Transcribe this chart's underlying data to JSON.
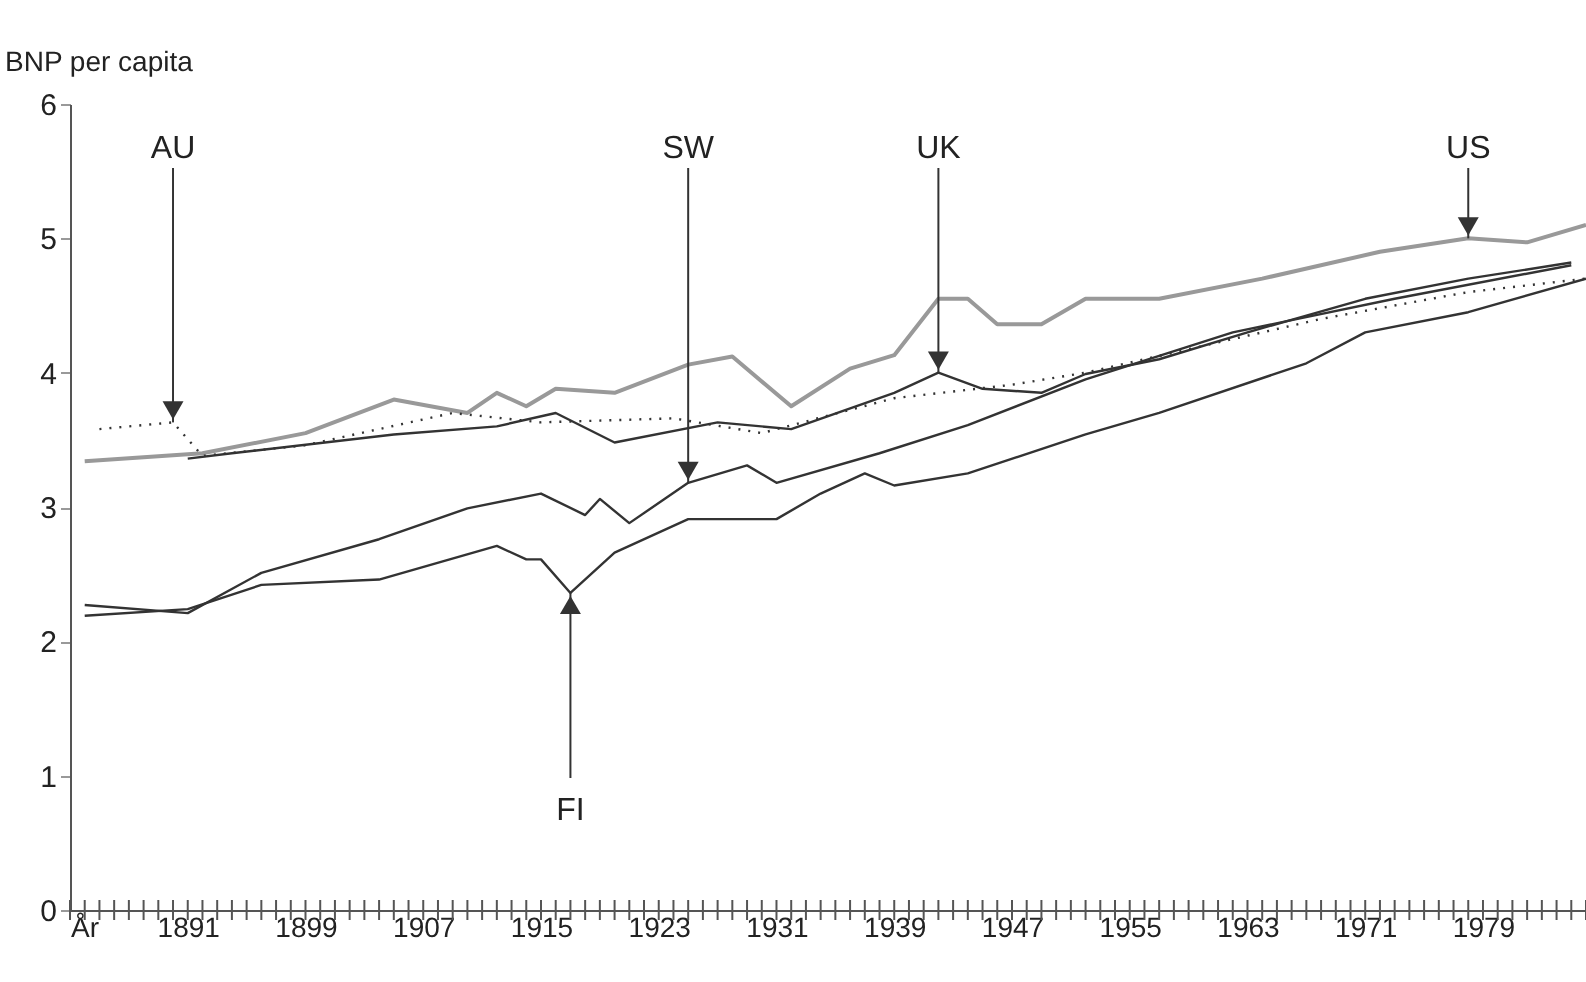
{
  "chart_data": {
    "type": "line",
    "ylabel": "BNP per capita",
    "xlim": [
      1883,
      1986
    ],
    "ylim": [
      0,
      6
    ],
    "yticks": [
      0,
      1,
      2,
      3,
      4,
      5,
      6
    ],
    "xticks": [
      {
        "value": 1883,
        "label": "År"
      },
      {
        "value": 1884,
        "label": null
      },
      {
        "value": 1885,
        "label": null
      },
      {
        "value": 1886,
        "label": null
      },
      {
        "value": 1887,
        "label": null
      },
      {
        "value": 1888,
        "label": null
      },
      {
        "value": 1889,
        "label": null
      },
      {
        "value": 1890,
        "label": null
      },
      1891,
      {
        "value": 1892,
        "label": null
      },
      {
        "value": 1893,
        "label": null
      },
      {
        "value": 1894,
        "label": null
      },
      {
        "value": 1895,
        "label": null
      },
      {
        "value": 1896,
        "label": null
      },
      {
        "value": 1897,
        "label": null
      },
      {
        "value": 1898,
        "label": null
      },
      1899,
      {
        "value": 1900,
        "label": null
      },
      {
        "value": 1901,
        "label": null
      },
      {
        "value": 1902,
        "label": null
      },
      {
        "value": 1903,
        "label": null
      },
      {
        "value": 1904,
        "label": null
      },
      {
        "value": 1905,
        "label": null
      },
      {
        "value": 1906,
        "label": null
      },
      1907,
      {
        "value": 1908,
        "label": null
      },
      {
        "value": 1909,
        "label": null
      },
      {
        "value": 1910,
        "label": null
      },
      {
        "value": 1911,
        "label": null
      },
      {
        "value": 1912,
        "label": null
      },
      {
        "value": 1913,
        "label": null
      },
      {
        "value": 1914,
        "label": null
      },
      1915,
      {
        "value": 1916,
        "label": null
      },
      {
        "value": 1917,
        "label": null
      },
      {
        "value": 1918,
        "label": null
      },
      {
        "value": 1919,
        "label": null
      },
      {
        "value": 1920,
        "label": null
      },
      {
        "value": 1921,
        "label": null
      },
      {
        "value": 1922,
        "label": null
      },
      1923,
      {
        "value": 1924,
        "label": null
      },
      {
        "value": 1925,
        "label": null
      },
      {
        "value": 1926,
        "label": null
      },
      {
        "value": 1927,
        "label": null
      },
      {
        "value": 1928,
        "label": null
      },
      {
        "value": 1929,
        "label": null
      },
      {
        "value": 1930,
        "label": null
      },
      1931,
      {
        "value": 1932,
        "label": null
      },
      {
        "value": 1933,
        "label": null
      },
      {
        "value": 1934,
        "label": null
      },
      {
        "value": 1935,
        "label": null
      },
      {
        "value": 1936,
        "label": null
      },
      {
        "value": 1937,
        "label": null
      },
      {
        "value": 1938,
        "label": null
      },
      1939,
      {
        "value": 1940,
        "label": null
      },
      {
        "value": 1941,
        "label": null
      },
      {
        "value": 1942,
        "label": null
      },
      {
        "value": 1943,
        "label": null
      },
      {
        "value": 1944,
        "label": null
      },
      {
        "value": 1945,
        "label": null
      },
      {
        "value": 1946,
        "label": null
      },
      1947,
      {
        "value": 1948,
        "label": null
      },
      {
        "value": 1949,
        "label": null
      },
      {
        "value": 1950,
        "label": null
      },
      {
        "value": 1951,
        "label": null
      },
      {
        "value": 1952,
        "label": null
      },
      {
        "value": 1953,
        "label": null
      },
      {
        "value": 1954,
        "label": null
      },
      1955,
      {
        "value": 1956,
        "label": null
      },
      {
        "value": 1957,
        "label": null
      },
      {
        "value": 1958,
        "label": null
      },
      {
        "value": 1959,
        "label": null
      },
      {
        "value": 1960,
        "label": null
      },
      {
        "value": 1961,
        "label": null
      },
      {
        "value": 1962,
        "label": null
      },
      1963,
      {
        "value": 1964,
        "label": null
      },
      {
        "value": 1965,
        "label": null
      },
      {
        "value": 1966,
        "label": null
      },
      {
        "value": 1967,
        "label": null
      },
      {
        "value": 1968,
        "label": null
      },
      {
        "value": 1969,
        "label": null
      },
      {
        "value": 1970,
        "label": null
      },
      1971,
      {
        "value": 1972,
        "label": null
      },
      {
        "value": 1973,
        "label": null
      },
      {
        "value": 1974,
        "label": null
      },
      {
        "value": 1975,
        "label": null
      },
      {
        "value": 1976,
        "label": null
      },
      {
        "value": 1977,
        "label": null
      },
      {
        "value": 1978,
        "label": null
      },
      1979,
      {
        "value": 1980,
        "label": null
      },
      {
        "value": 1981,
        "label": null
      },
      {
        "value": 1982,
        "label": null
      },
      {
        "value": 1983,
        "label": null
      },
      {
        "value": 1984,
        "label": null
      },
      {
        "value": 1985,
        "label": null
      },
      {
        "value": 1986,
        "label": null
      }
    ],
    "grid": false,
    "marker": "none",
    "series": [
      {
        "color": "#999999",
        "x": [
          1884,
          1892,
          1899,
          1905,
          1910,
          1912,
          1914,
          1916,
          1920,
          1925,
          1928,
          1932,
          1936,
          1939,
          1942,
          1944,
          1946,
          1949,
          1952,
          1957,
          1964,
          1972,
          1978,
          1982,
          1986
        ],
        "values": [
          3.34,
          3.4,
          3.55,
          3.8,
          3.7,
          3.85,
          3.75,
          3.88,
          3.85,
          4.06,
          4.12,
          3.75,
          4.03,
          4.13,
          4.55,
          4.55,
          4.36,
          4.36,
          4.55,
          4.55,
          4.7,
          4.9,
          5.0,
          4.97,
          5.1
        ]
      },
      {
        "color": "#333333",
        "x": [
          1891,
          1894,
          1905,
          1912,
          1916,
          1920,
          1927,
          1932,
          1939,
          1942,
          1945,
          1949,
          1952,
          1957,
          1963,
          1971,
          1978,
          1985
        ],
        "values": [
          3.36,
          3.4,
          3.54,
          3.6,
          3.7,
          3.48,
          3.63,
          3.58,
          3.85,
          4.0,
          3.88,
          3.85,
          3.99,
          4.1,
          4.3,
          4.55,
          4.7,
          4.82
        ]
      },
      {
        "color": "#333333",
        "x": [
          1884,
          1891,
          1896,
          1904,
          1910,
          1915,
          1918,
          1919,
          1921,
          1925,
          1929,
          1931,
          1938,
          1944,
          1952,
          1962,
          1973,
          1985
        ],
        "values": [
          2.27,
          2.21,
          2.51,
          2.76,
          2.99,
          3.1,
          2.94,
          3.06,
          2.88,
          3.18,
          3.31,
          3.18,
          3.4,
          3.61,
          3.95,
          4.3,
          4.55,
          4.8
        ]
      },
      {
        "color": "#333333",
        "x": [
          1884,
          1891,
          1896,
          1904,
          1912,
          1914,
          1915,
          1917,
          1920,
          1925,
          1931,
          1934,
          1937,
          1939,
          1944,
          1952,
          1957,
          1967,
          1971,
          1978,
          1986
        ],
        "values": [
          2.19,
          2.24,
          2.42,
          2.46,
          2.71,
          2.61,
          2.61,
          2.36,
          2.66,
          2.91,
          2.91,
          3.1,
          3.25,
          3.16,
          3.25,
          3.54,
          3.7,
          4.07,
          4.3,
          4.45,
          4.7
        ]
      },
      {
        "color": "#333333",
        "line_style": "dotted",
        "x": [
          1885,
          1890,
          1892,
          1899,
          1909,
          1915,
          1924,
          1930,
          1939,
          1947,
          1952,
          1968,
          1978,
          1986
        ],
        "values": [
          3.58,
          3.63,
          3.38,
          3.46,
          3.7,
          3.63,
          3.66,
          3.55,
          3.81,
          3.91,
          4.0,
          4.4,
          4.6,
          4.7
        ]
      }
    ],
    "annotations": [
      {
        "text": "AU",
        "x": 1890,
        "y": 3.63
      },
      {
        "text": "SW",
        "x": 1925,
        "y": 3.18
      },
      {
        "text": "UK",
        "x": 1942,
        "y": 4.0
      },
      {
        "text": "US",
        "x": 1978,
        "y": 5.0
      },
      {
        "text": "FI",
        "x": 1917,
        "y": 2.36
      }
    ]
  }
}
